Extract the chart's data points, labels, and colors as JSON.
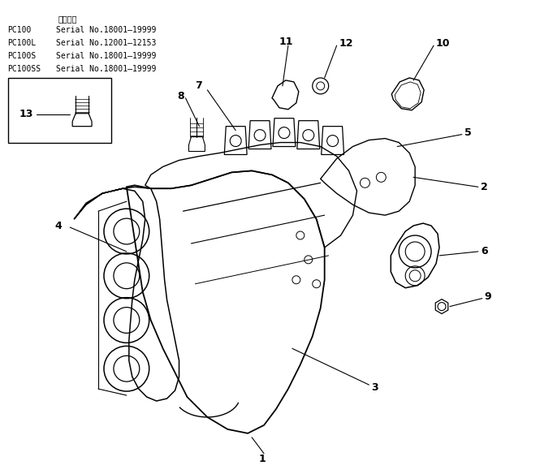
{
  "background_color": "#ffffff",
  "fig_width": 6.65,
  "fig_height": 5.84,
  "dpi": 100,
  "line_color": "#000000",
  "text_color": "#000000",
  "header_rows": [
    [
      "PC100",
      "Serial No.18001—19999"
    ],
    [
      "PC100L",
      "Serial No.12001—12153"
    ],
    [
      "PC100S",
      "Serial No.18001—19999"
    ],
    [
      "PC100SS",
      "Serial No.18001—19999"
    ]
  ],
  "header_label": "通用号板"
}
